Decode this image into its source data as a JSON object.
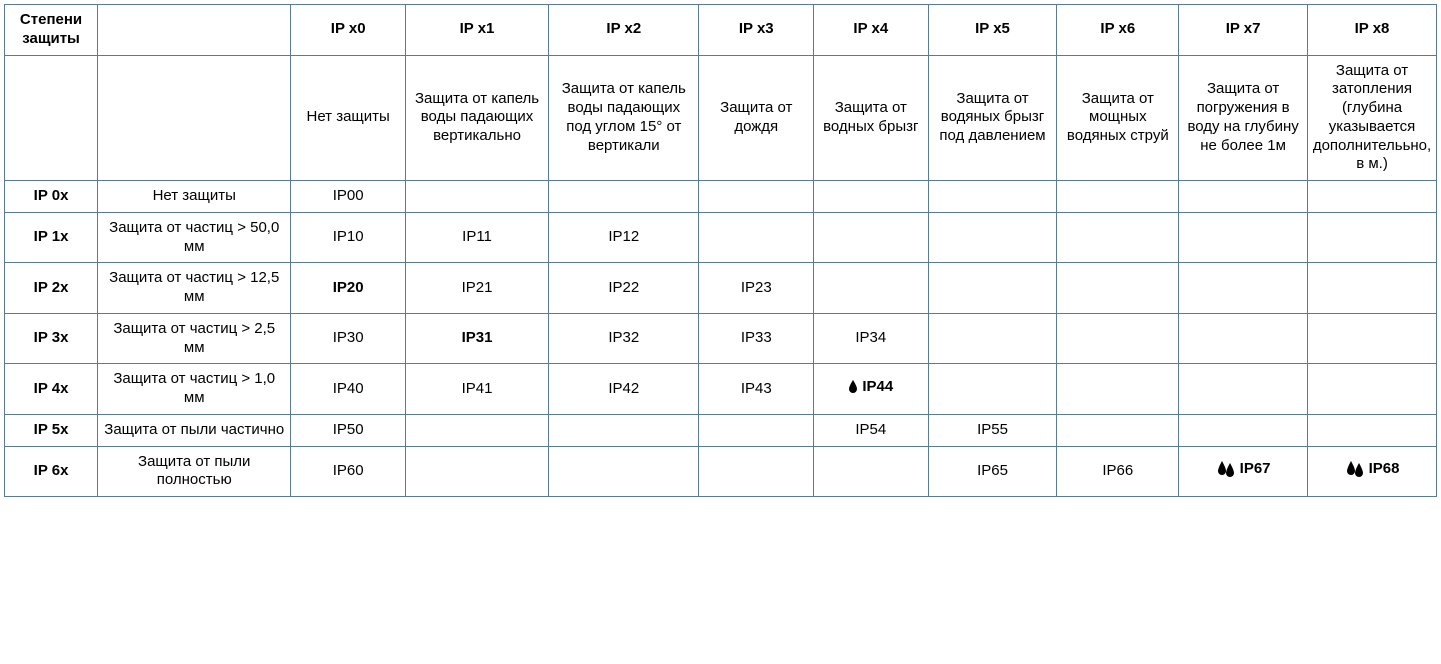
{
  "table": {
    "border_color": "#5a7a9a",
    "background_color": "#ffffff",
    "text_color": "#000000",
    "font_family": "Arial",
    "header_fontsize": 15,
    "cell_fontsize": 15,
    "column_widths_pct": [
      6.5,
      13.5,
      8,
      10,
      10.5,
      8,
      8,
      9,
      8.5,
      9,
      9
    ],
    "corner_label": "Степени защиты",
    "col_headers": [
      "IP x0",
      "IP x1",
      "IP x2",
      "IP x3",
      "IP x4",
      "IP x5",
      "IP x6",
      "IP x7",
      "IP x8"
    ],
    "col_descriptions": [
      "Нет защиты",
      "Защита от капель воды падающих вертикально",
      "Защита от капель воды падающих под углом 15° от вертикали",
      "Защита от дождя",
      "Защита от водных брызг",
      "Защита от водяных брызг под давлением",
      "Защита от мощных водяных струй",
      "Защита от погружения в воду на глубину не более 1м",
      "Защита от затопления (глубина указывается дополнитель­ьно, в м.)"
    ],
    "rows": [
      {
        "label": "IP 0x",
        "desc": "Нет защиты",
        "cells": [
          {
            "text": "IP00",
            "bold": false,
            "icon": null
          },
          {
            "text": "",
            "bold": false,
            "icon": null
          },
          {
            "text": "",
            "bold": false,
            "icon": null
          },
          {
            "text": "",
            "bold": false,
            "icon": null
          },
          {
            "text": "",
            "bold": false,
            "icon": null
          },
          {
            "text": "",
            "bold": false,
            "icon": null
          },
          {
            "text": "",
            "bold": false,
            "icon": null
          },
          {
            "text": "",
            "bold": false,
            "icon": null
          },
          {
            "text": "",
            "bold": false,
            "icon": null
          }
        ]
      },
      {
        "label": "IP 1x",
        "desc": "Защита от частиц > 50,0 мм",
        "cells": [
          {
            "text": "IP10",
            "bold": false,
            "icon": null
          },
          {
            "text": "IP11",
            "bold": false,
            "icon": null
          },
          {
            "text": "IP12",
            "bold": false,
            "icon": null
          },
          {
            "text": "",
            "bold": false,
            "icon": null
          },
          {
            "text": "",
            "bold": false,
            "icon": null
          },
          {
            "text": "",
            "bold": false,
            "icon": null
          },
          {
            "text": "",
            "bold": false,
            "icon": null
          },
          {
            "text": "",
            "bold": false,
            "icon": null
          },
          {
            "text": "",
            "bold": false,
            "icon": null
          }
        ]
      },
      {
        "label": "IP 2x",
        "desc": "Защита от частиц > 12,5 мм",
        "cells": [
          {
            "text": "IP20",
            "bold": true,
            "icon": null
          },
          {
            "text": "IP21",
            "bold": false,
            "icon": null
          },
          {
            "text": "IP22",
            "bold": false,
            "icon": null
          },
          {
            "text": "IP23",
            "bold": false,
            "icon": null
          },
          {
            "text": "",
            "bold": false,
            "icon": null
          },
          {
            "text": "",
            "bold": false,
            "icon": null
          },
          {
            "text": "",
            "bold": false,
            "icon": null
          },
          {
            "text": "",
            "bold": false,
            "icon": null
          },
          {
            "text": "",
            "bold": false,
            "icon": null
          }
        ]
      },
      {
        "label": "IP 3x",
        "desc": "Защита от частиц > 2,5 мм",
        "cells": [
          {
            "text": "IP30",
            "bold": false,
            "icon": null
          },
          {
            "text": "IP31",
            "bold": true,
            "icon": null
          },
          {
            "text": "IP32",
            "bold": false,
            "icon": null
          },
          {
            "text": "IP33",
            "bold": false,
            "icon": null
          },
          {
            "text": "IP34",
            "bold": false,
            "icon": null
          },
          {
            "text": "",
            "bold": false,
            "icon": null
          },
          {
            "text": "",
            "bold": false,
            "icon": null
          },
          {
            "text": "",
            "bold": false,
            "icon": null
          },
          {
            "text": "",
            "bold": false,
            "icon": null
          }
        ]
      },
      {
        "label": "IP 4x",
        "desc": "Защита от частиц > 1,0 мм",
        "cells": [
          {
            "text": "IP40",
            "bold": false,
            "icon": null
          },
          {
            "text": "IP41",
            "bold": false,
            "icon": null
          },
          {
            "text": "IP42",
            "bold": false,
            "icon": null
          },
          {
            "text": "IP43",
            "bold": false,
            "icon": null
          },
          {
            "text": "IP44",
            "bold": true,
            "icon": "small-drop"
          },
          {
            "text": "",
            "bold": false,
            "icon": null
          },
          {
            "text": "",
            "bold": false,
            "icon": null
          },
          {
            "text": "",
            "bold": false,
            "icon": null
          },
          {
            "text": "",
            "bold": false,
            "icon": null
          }
        ]
      },
      {
        "label": "IP 5x",
        "desc": "Защита от пыли частично",
        "cells": [
          {
            "text": "IP50",
            "bold": false,
            "icon": null
          },
          {
            "text": "",
            "bold": false,
            "icon": null
          },
          {
            "text": "",
            "bold": false,
            "icon": null
          },
          {
            "text": "",
            "bold": false,
            "icon": null
          },
          {
            "text": "IP54",
            "bold": false,
            "icon": null
          },
          {
            "text": "IP55",
            "bold": false,
            "icon": null
          },
          {
            "text": "",
            "bold": false,
            "icon": null
          },
          {
            "text": "",
            "bold": false,
            "icon": null
          },
          {
            "text": "",
            "bold": false,
            "icon": null
          }
        ]
      },
      {
        "label": "IP 6x",
        "desc": "Защита от пыли полностью",
        "cells": [
          {
            "text": "IP60",
            "bold": false,
            "icon": null
          },
          {
            "text": "",
            "bold": false,
            "icon": null
          },
          {
            "text": "",
            "bold": false,
            "icon": null
          },
          {
            "text": "",
            "bold": false,
            "icon": null
          },
          {
            "text": "",
            "bold": false,
            "icon": null
          },
          {
            "text": "IP65",
            "bold": false,
            "icon": null
          },
          {
            "text": "IP66",
            "bold": false,
            "icon": null
          },
          {
            "text": "IP67",
            "bold": true,
            "icon": "double-drop"
          },
          {
            "text": "IP68",
            "bold": true,
            "icon": "double-drop"
          }
        ]
      }
    ]
  },
  "icons": {
    "drop_color": "#000000"
  }
}
